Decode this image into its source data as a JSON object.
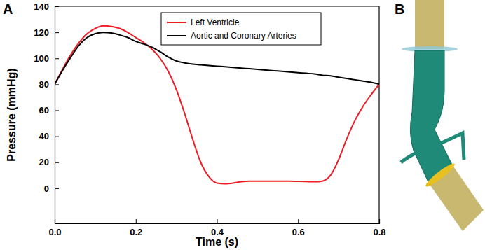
{
  "chart_data": {
    "type": "line",
    "annotations": [
      "A",
      "B"
    ],
    "x_label": "Time (s)",
    "y_label": "Pressure (mmHg)",
    "x": [
      0,
      0.02,
      0.04,
      0.06,
      0.08,
      0.1,
      0.12,
      0.14,
      0.16,
      0.18,
      0.2,
      0.22,
      0.24,
      0.26,
      0.28,
      0.3,
      0.32,
      0.34,
      0.36,
      0.38,
      0.4,
      0.42,
      0.44,
      0.46,
      0.48,
      0.5,
      0.52,
      0.54,
      0.56,
      0.58,
      0.6,
      0.62,
      0.64,
      0.66,
      0.68,
      0.7,
      0.72,
      0.74,
      0.76,
      0.78,
      0.8
    ],
    "series": [
      {
        "name": "Left Ventricle",
        "color": "#ee1c25",
        "values": [
          80,
          92,
          103,
          112,
          119,
          123,
          125,
          124.5,
          123,
          120,
          116,
          112,
          107,
          100,
          90,
          76,
          58,
          38,
          20,
          9,
          4,
          3.5,
          4,
          5,
          5.5,
          5.5,
          5.5,
          5.5,
          5.5,
          5.4,
          5.3,
          5.2,
          5,
          5.5,
          10,
          22,
          38,
          52,
          63,
          72,
          80
        ]
      },
      {
        "name": "Aortic and Coronary Arteries",
        "color": "#000000",
        "values": [
          80,
          91,
          101,
          110,
          116,
          119,
          120,
          119.5,
          118,
          116,
          113,
          111,
          108.5,
          105,
          101,
          98,
          96.5,
          95.5,
          95,
          94.5,
          94,
          93.5,
          93,
          92.5,
          92,
          91.5,
          91,
          90.5,
          90,
          89.5,
          89,
          88.5,
          88,
          87,
          86.5,
          85.5,
          84.5,
          83.5,
          82.5,
          81.5,
          80
        ]
      }
    ],
    "xlim": [
      0,
      0.8
    ],
    "xticks": [
      {
        "value": 0,
        "label": "0.0"
      },
      0.2,
      0.4,
      0.6,
      0.8
    ],
    "ylim": [
      -27,
      140
    ],
    "yticks": [
      0,
      20,
      40,
      60,
      80,
      100,
      120,
      140
    ],
    "legend": "top",
    "grid": false
  }
}
